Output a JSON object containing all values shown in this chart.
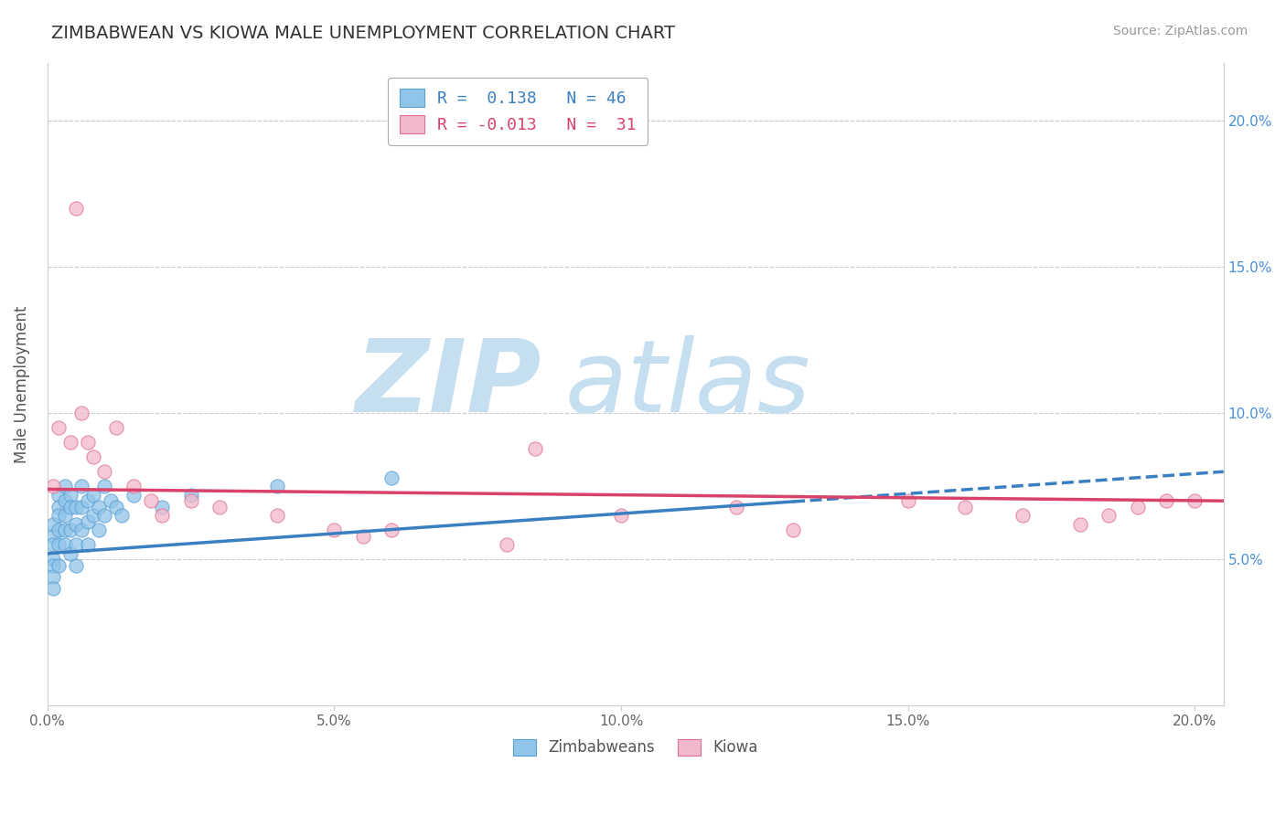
{
  "title": "ZIMBABWEAN VS KIOWA MALE UNEMPLOYMENT CORRELATION CHART",
  "source": "Source: ZipAtlas.com",
  "ylabel": "Male Unemployment",
  "xlim": [
    0.0,
    0.205
  ],
  "ylim": [
    0.0,
    0.22
  ],
  "xticks": [
    0.0,
    0.05,
    0.1,
    0.15,
    0.2
  ],
  "yticks": [
    0.05,
    0.1,
    0.15,
    0.2
  ],
  "xtick_labels": [
    "0.0%",
    "5.0%",
    "10.0%",
    "15.0%",
    "20.0%"
  ],
  "ytick_labels_right": [
    "5.0%",
    "10.0%",
    "15.0%",
    "20.0%"
  ],
  "legend_line1": "R =  0.138   N = 46",
  "legend_line2": "R = -0.013   N =  31",
  "blue_scatter_color": "#90c4e8",
  "blue_edge_color": "#5a9fd4",
  "pink_scatter_color": "#f4b8cc",
  "pink_edge_color": "#e07090",
  "blue_line_color": "#3a7fc1",
  "pink_line_color": "#d9426a",
  "legend_blue_color": "#3a7fc1",
  "legend_pink_color": "#d9426a",
  "watermark_zip_color": "#c5dff0",
  "watermark_atlas_color": "#c5dff0",
  "zimbabwean_x": [
    0.001,
    0.001,
    0.001,
    0.001,
    0.001,
    0.001,
    0.001,
    0.002,
    0.002,
    0.002,
    0.002,
    0.002,
    0.002,
    0.003,
    0.003,
    0.003,
    0.003,
    0.003,
    0.004,
    0.004,
    0.004,
    0.004,
    0.005,
    0.005,
    0.005,
    0.005,
    0.006,
    0.006,
    0.006,
    0.007,
    0.007,
    0.007,
    0.008,
    0.008,
    0.009,
    0.009,
    0.01,
    0.01,
    0.011,
    0.012,
    0.013,
    0.015,
    0.02,
    0.025,
    0.04,
    0.06
  ],
  "zimbabwean_y": [
    0.062,
    0.058,
    0.055,
    0.05,
    0.048,
    0.044,
    0.04,
    0.072,
    0.068,
    0.065,
    0.06,
    0.055,
    0.048,
    0.075,
    0.07,
    0.065,
    0.06,
    0.055,
    0.072,
    0.068,
    0.06,
    0.052,
    0.068,
    0.062,
    0.055,
    0.048,
    0.075,
    0.068,
    0.06,
    0.07,
    0.063,
    0.055,
    0.072,
    0.065,
    0.068,
    0.06,
    0.075,
    0.065,
    0.07,
    0.068,
    0.065,
    0.072,
    0.068,
    0.072,
    0.075,
    0.078
  ],
  "kiowa_x": [
    0.001,
    0.002,
    0.004,
    0.005,
    0.006,
    0.007,
    0.008,
    0.01,
    0.012,
    0.015,
    0.018,
    0.02,
    0.025,
    0.03,
    0.04,
    0.05,
    0.055,
    0.06,
    0.08,
    0.085,
    0.1,
    0.12,
    0.13,
    0.15,
    0.16,
    0.17,
    0.18,
    0.185,
    0.19,
    0.195,
    0.2
  ],
  "kiowa_y": [
    0.075,
    0.095,
    0.09,
    0.17,
    0.1,
    0.09,
    0.085,
    0.08,
    0.095,
    0.075,
    0.07,
    0.065,
    0.07,
    0.068,
    0.065,
    0.06,
    0.058,
    0.06,
    0.055,
    0.088,
    0.065,
    0.068,
    0.06,
    0.07,
    0.068,
    0.065,
    0.062,
    0.065,
    0.068,
    0.07,
    0.07
  ],
  "blue_trend_start_x": 0.0,
  "blue_trend_start_y": 0.052,
  "blue_trend_solid_end_x": 0.13,
  "blue_trend_end_x": 0.205,
  "blue_trend_end_y": 0.08,
  "pink_trend_start_x": 0.0,
  "pink_trend_start_y": 0.074,
  "pink_trend_end_x": 0.205,
  "pink_trend_end_y": 0.07
}
